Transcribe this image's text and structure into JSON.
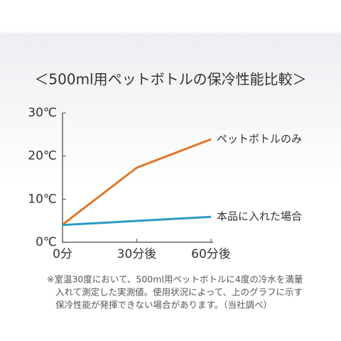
{
  "chart_data": {
    "type": "line",
    "title": "＜500ml用ペットボトルの保冷性能比較＞",
    "x": [
      0,
      30,
      60
    ],
    "xlim": [
      0,
      60
    ],
    "xticks": [
      {
        "value": 0,
        "label": "0分"
      },
      {
        "value": 30,
        "label": "30分後"
      },
      {
        "value": 60,
        "label": "60分後"
      }
    ],
    "ylim": [
      0,
      30
    ],
    "yticks": [
      {
        "value": 0,
        "label": "0℃"
      },
      {
        "value": 10,
        "label": "10℃"
      },
      {
        "value": 20,
        "label": "20℃"
      },
      {
        "value": 30,
        "label": "30℃"
      }
    ],
    "grid": false,
    "series": [
      {
        "name": "ペットボトルのみ",
        "color": "#e0772a",
        "values": [
          4.1,
          17.3,
          23.9
        ]
      },
      {
        "name": "本品に入れた場合",
        "color": "#2e9ac4",
        "values": [
          4.0,
          null,
          5.9
        ]
      }
    ],
    "notes": [
      "※室温30度において、500ml用ペットボトルに4度の冷水を満量",
      "入れて測定した実測値。使用状況によって、上のグラフに示す",
      "保冷性能が発揮できない場合があります。（当社調べ）"
    ]
  }
}
